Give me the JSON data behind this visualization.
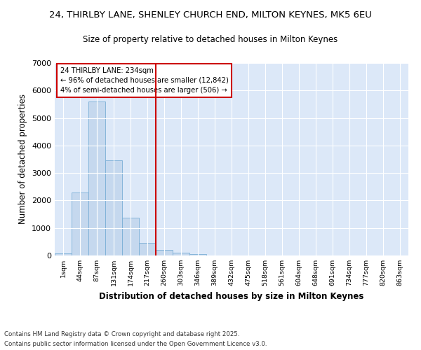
{
  "title_line1": "24, THIRLBY LANE, SHENLEY CHURCH END, MILTON KEYNES, MK5 6EU",
  "title_line2": "Size of property relative to detached houses in Milton Keynes",
  "xlabel": "Distribution of detached houses by size in Milton Keynes",
  "ylabel": "Number of detached properties",
  "categories": [
    "1sqm",
    "44sqm",
    "87sqm",
    "131sqm",
    "174sqm",
    "217sqm",
    "260sqm",
    "303sqm",
    "346sqm",
    "389sqm",
    "432sqm",
    "475sqm",
    "518sqm",
    "561sqm",
    "604sqm",
    "648sqm",
    "691sqm",
    "734sqm",
    "777sqm",
    "820sqm",
    "863sqm"
  ],
  "bar_values": [
    70,
    2300,
    5600,
    3450,
    1380,
    470,
    200,
    110,
    50,
    10,
    5,
    2,
    0,
    0,
    0,
    0,
    0,
    0,
    0,
    0,
    0
  ],
  "bar_color": "#c5d8ee",
  "bar_edge_color": "#7aaed6",
  "vline_x_index": 5.5,
  "annotation_title": "24 THIRLBY LANE: 234sqm",
  "annotation_line1": "← 96% of detached houses are smaller (12,842)",
  "annotation_line2": "4% of semi-detached houses are larger (506) →",
  "annotation_box_facecolor": "#ffffff",
  "annotation_box_edgecolor": "#cc0000",
  "ylim": [
    0,
    7000
  ],
  "yticks": [
    0,
    1000,
    2000,
    3000,
    4000,
    5000,
    6000,
    7000
  ],
  "fig_bg_color": "#ffffff",
  "plot_bg_color": "#dce8f8",
  "grid_color": "#ffffff",
  "footer_line1": "Contains HM Land Registry data © Crown copyright and database right 2025.",
  "footer_line2": "Contains public sector information licensed under the Open Government Licence v3.0."
}
